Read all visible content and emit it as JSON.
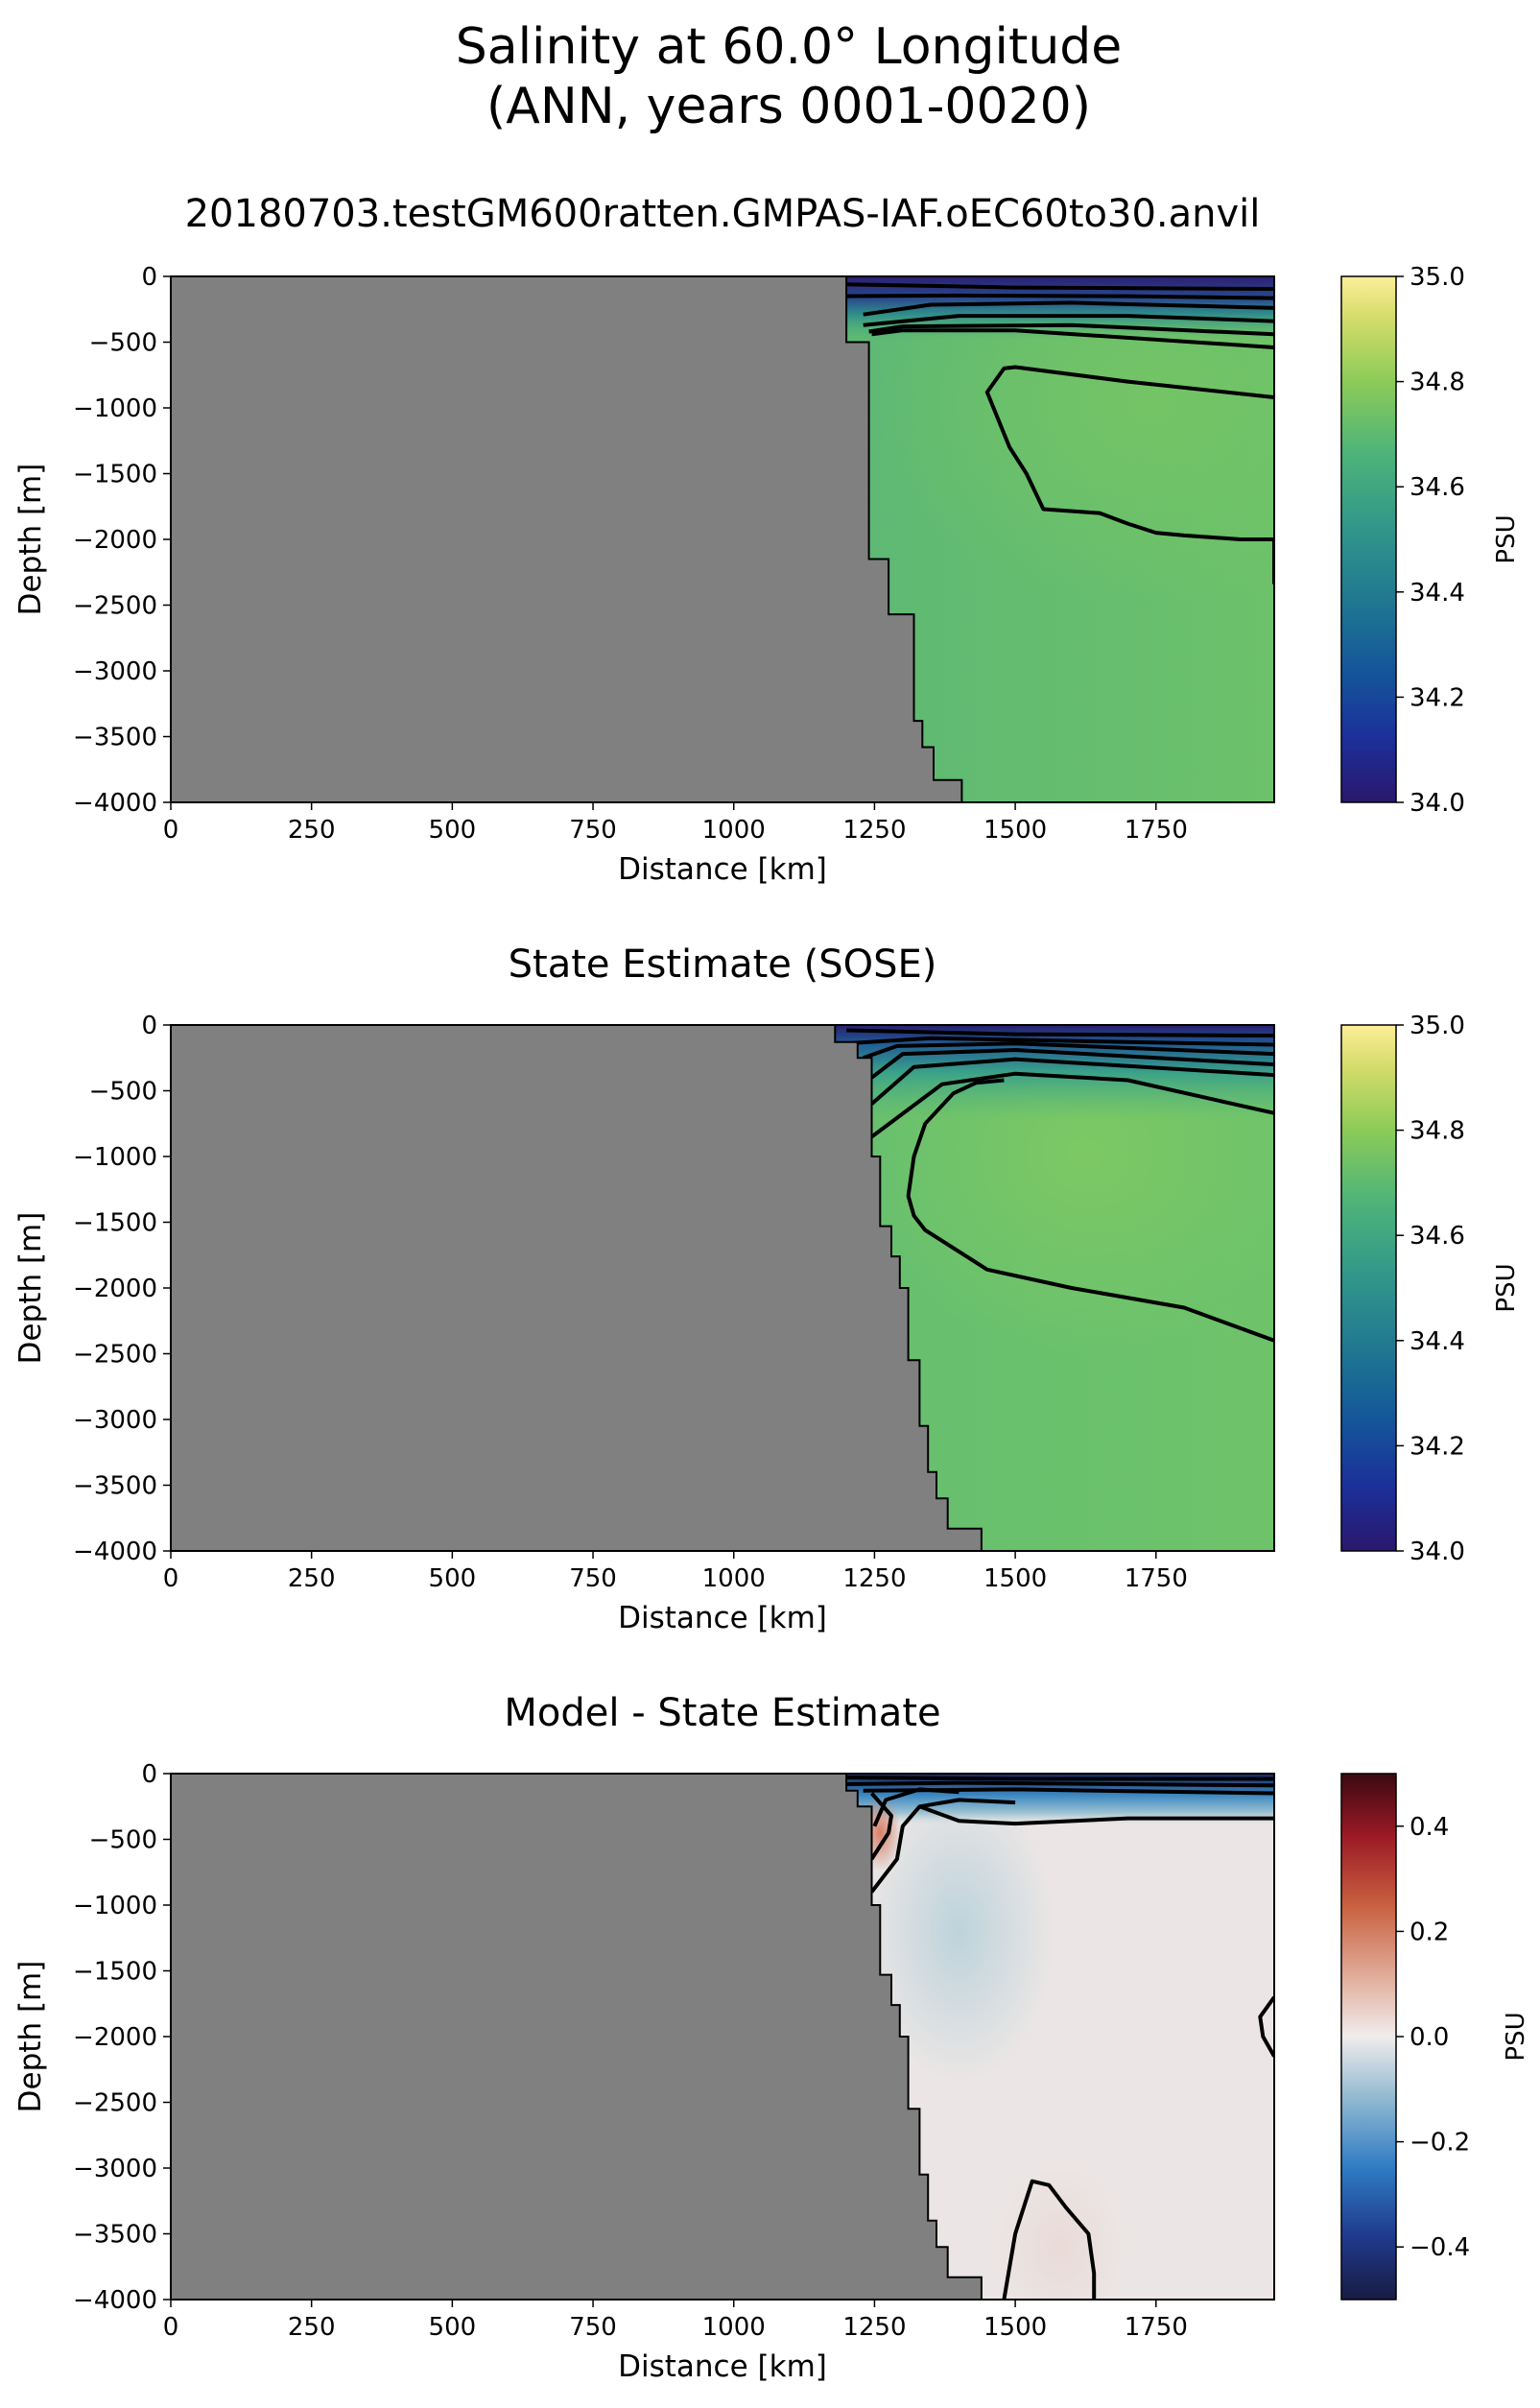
{
  "figure": {
    "title_line1": "Salinity at 60.0° Longitude",
    "title_line2": "(ANN, years 0001-0020)"
  },
  "chart_data": [
    {
      "type": "heatmap",
      "title": "20180703.testGM600ratten.GMPAS-IAF.oEC60to30.anvil",
      "xlabel": "Distance [km]",
      "ylabel": "Depth [m]",
      "xlim": [
        0,
        1960
      ],
      "ylim": [
        -4000,
        0
      ],
      "xticks": [
        0,
        250,
        500,
        750,
        1000,
        1250,
        1500,
        1750
      ],
      "yticks": [
        0,
        -500,
        -1000,
        -1500,
        -2000,
        -2500,
        -3000,
        -3500,
        -4000
      ],
      "colormap": "haline",
      "colorbar": {
        "label": "PSU",
        "range": [
          34.0,
          35.0
        ],
        "ticks": [
          "34.0",
          "34.2",
          "34.4",
          "34.6",
          "34.8",
          "35.0"
        ]
      },
      "land_color": "#808080",
      "bathymetry": [
        [
          1200,
          -500
        ],
        [
          1240,
          -500
        ],
        [
          1240,
          -2150
        ],
        [
          1275,
          -2150
        ],
        [
          1275,
          -2570
        ],
        [
          1320,
          -2570
        ],
        [
          1320,
          -3380
        ],
        [
          1335,
          -3380
        ],
        [
          1335,
          -3580
        ],
        [
          1355,
          -3580
        ],
        [
          1355,
          -3830
        ],
        [
          1405,
          -3830
        ],
        [
          1405,
          -4000
        ]
      ],
      "field": [
        {
          "x": 1200,
          "z": -50,
          "value": 34.08
        },
        {
          "x": 1800,
          "z": -50,
          "value": 34.12
        },
        {
          "x": 1300,
          "z": -1500,
          "value": 34.62
        },
        {
          "x": 1750,
          "z": -1500,
          "value": 34.71
        },
        {
          "x": 1600,
          "z": -3500,
          "value": 34.64
        }
      ],
      "contours": [
        [
          [
            1200,
            -60
          ],
          [
            1500,
            -85
          ],
          [
            1960,
            -95
          ]
        ],
        [
          [
            1200,
            -150
          ],
          [
            1400,
            -145
          ],
          [
            1700,
            -150
          ],
          [
            1960,
            -165
          ]
        ],
        [
          [
            1230,
            -290
          ],
          [
            1350,
            -215
          ],
          [
            1600,
            -200
          ],
          [
            1960,
            -240
          ]
        ],
        [
          [
            1230,
            -370
          ],
          [
            1400,
            -300
          ],
          [
            1700,
            -300
          ],
          [
            1960,
            -340
          ]
        ],
        [
          [
            1240,
            -420
          ],
          [
            1300,
            -380
          ],
          [
            1600,
            -370
          ],
          [
            1960,
            -440
          ]
        ],
        [
          [
            1245,
            -440
          ],
          [
            1300,
            -410
          ],
          [
            1500,
            -410
          ],
          [
            1960,
            -540
          ]
        ],
        [
          [
            1960,
            -920
          ],
          [
            1700,
            -800
          ],
          [
            1500,
            -690
          ],
          [
            1480,
            -700
          ],
          [
            1450,
            -880
          ],
          [
            1490,
            -1300
          ],
          [
            1520,
            -1500
          ],
          [
            1550,
            -1770
          ],
          [
            1650,
            -1800
          ],
          [
            1700,
            -1880
          ],
          [
            1750,
            -1950
          ],
          [
            1800,
            -1970
          ],
          [
            1900,
            -2000
          ],
          [
            1960,
            -2000
          ],
          [
            1960,
            -2340
          ]
        ]
      ]
    },
    {
      "type": "heatmap",
      "title": "State Estimate (SOSE)",
      "xlabel": "Distance [km]",
      "ylabel": "Depth [m]",
      "xlim": [
        0,
        1960
      ],
      "ylim": [
        -4000,
        0
      ],
      "xticks": [
        0,
        250,
        500,
        750,
        1000,
        1250,
        1500,
        1750
      ],
      "yticks": [
        0,
        -500,
        -1000,
        -1500,
        -2000,
        -2500,
        -3000,
        -3500,
        -4000
      ],
      "colormap": "haline",
      "colorbar": {
        "label": "PSU",
        "range": [
          34.0,
          35.0
        ],
        "ticks": [
          "34.0",
          "34.2",
          "34.4",
          "34.6",
          "34.8",
          "35.0"
        ]
      },
      "land_color": "#808080",
      "bathymetry": [
        [
          1180,
          -130
        ],
        [
          1220,
          -130
        ],
        [
          1220,
          -250
        ],
        [
          1245,
          -250
        ],
        [
          1245,
          -1000
        ],
        [
          1260,
          -1000
        ],
        [
          1260,
          -1530
        ],
        [
          1280,
          -1530
        ],
        [
          1280,
          -1760
        ],
        [
          1295,
          -1760
        ],
        [
          1295,
          -2000
        ],
        [
          1310,
          -2000
        ],
        [
          1310,
          -2550
        ],
        [
          1330,
          -2550
        ],
        [
          1330,
          -3050
        ],
        [
          1345,
          -3050
        ],
        [
          1345,
          -3400
        ],
        [
          1360,
          -3400
        ],
        [
          1360,
          -3600
        ],
        [
          1380,
          -3600
        ],
        [
          1380,
          -3830
        ],
        [
          1440,
          -3830
        ],
        [
          1440,
          -4000
        ]
      ],
      "field": [
        {
          "x": 1220,
          "z": -80,
          "value": 34.3
        },
        {
          "x": 1800,
          "z": -50,
          "value": 34.05
        },
        {
          "x": 1450,
          "z": -1200,
          "value": 34.72
        },
        {
          "x": 1750,
          "z": -1500,
          "value": 34.73
        },
        {
          "x": 1600,
          "z": -3500,
          "value": 34.66
        }
      ],
      "contours": [
        [
          [
            1200,
            -40
          ],
          [
            1500,
            -70
          ],
          [
            1960,
            -80
          ]
        ],
        [
          [
            1200,
            -140
          ],
          [
            1350,
            -100
          ],
          [
            1700,
            -130
          ],
          [
            1960,
            -150
          ]
        ],
        [
          [
            1230,
            -250
          ],
          [
            1290,
            -160
          ],
          [
            1500,
            -140
          ],
          [
            1960,
            -220
          ]
        ],
        [
          [
            1245,
            -400
          ],
          [
            1300,
            -220
          ],
          [
            1500,
            -190
          ],
          [
            1960,
            -300
          ]
        ],
        [
          [
            1245,
            -600
          ],
          [
            1320,
            -320
          ],
          [
            1500,
            -260
          ],
          [
            1960,
            -380
          ]
        ],
        [
          [
            1245,
            -850
          ],
          [
            1370,
            -450
          ],
          [
            1500,
            -370
          ],
          [
            1700,
            -420
          ],
          [
            1960,
            -670
          ]
        ],
        [
          [
            1960,
            -2400
          ],
          [
            1800,
            -2150
          ],
          [
            1600,
            -2000
          ],
          [
            1450,
            -1860
          ],
          [
            1340,
            -1560
          ],
          [
            1320,
            -1450
          ],
          [
            1310,
            -1300
          ],
          [
            1320,
            -1000
          ],
          [
            1340,
            -750
          ],
          [
            1390,
            -520
          ],
          [
            1430,
            -440
          ],
          [
            1480,
            -420
          ]
        ]
      ]
    },
    {
      "type": "heatmap",
      "title": "Model - State Estimate",
      "xlabel": "Distance [km]",
      "ylabel": "Depth [m]",
      "xlim": [
        0,
        1960
      ],
      "ylim": [
        -4000,
        0
      ],
      "xticks": [
        0,
        250,
        500,
        750,
        1000,
        1250,
        1500,
        1750
      ],
      "yticks": [
        0,
        -500,
        -1000,
        -1500,
        -2000,
        -2500,
        -3000,
        -3500,
        -4000
      ],
      "colormap": "balance",
      "colorbar": {
        "label": "PSU",
        "range": [
          -0.5,
          0.5
        ],
        "ticks": [
          "−0.4",
          "−0.2",
          "0.0",
          "0.2",
          "0.4"
        ]
      },
      "land_color": "#808080",
      "bathymetry": [
        [
          1200,
          -130
        ],
        [
          1220,
          -130
        ],
        [
          1220,
          -250
        ],
        [
          1245,
          -250
        ],
        [
          1245,
          -1000
        ],
        [
          1260,
          -1000
        ],
        [
          1260,
          -1530
        ],
        [
          1280,
          -1530
        ],
        [
          1280,
          -1760
        ],
        [
          1295,
          -1760
        ],
        [
          1295,
          -2000
        ],
        [
          1310,
          -2000
        ],
        [
          1310,
          -2550
        ],
        [
          1330,
          -2550
        ],
        [
          1330,
          -3050
        ],
        [
          1345,
          -3050
        ],
        [
          1345,
          -3400
        ],
        [
          1360,
          -3400
        ],
        [
          1360,
          -3600
        ],
        [
          1380,
          -3600
        ],
        [
          1380,
          -3830
        ],
        [
          1440,
          -3830
        ],
        [
          1440,
          -4000
        ]
      ],
      "field": [
        {
          "x": 1250,
          "z": -400,
          "value": 0.18
        },
        {
          "x": 1340,
          "z": -150,
          "value": -0.35
        },
        {
          "x": 1800,
          "z": -100,
          "value": -0.25
        },
        {
          "x": 1380,
          "z": -1100,
          "value": -0.08
        },
        {
          "x": 1800,
          "z": -2000,
          "value": 0.02
        },
        {
          "x": 1580,
          "z": -3600,
          "value": 0.03
        }
      ],
      "contours": [
        [
          [
            1200,
            -30
          ],
          [
            1500,
            -40
          ],
          [
            1960,
            -40
          ]
        ],
        [
          [
            1200,
            -80
          ],
          [
            1400,
            -70
          ],
          [
            1960,
            -90
          ]
        ],
        [
          [
            1230,
            -130
          ],
          [
            1500,
            -120
          ],
          [
            1960,
            -150
          ]
        ],
        [
          [
            1250,
            -400
          ],
          [
            1270,
            -200
          ],
          [
            1330,
            -120
          ],
          [
            1400,
            -140
          ]
        ],
        [
          [
            1245,
            -900
          ],
          [
            1290,
            -650
          ],
          [
            1300,
            -400
          ],
          [
            1330,
            -250
          ],
          [
            1400,
            -200
          ],
          [
            1500,
            -220
          ]
        ],
        [
          [
            1245,
            -650
          ],
          [
            1275,
            -450
          ],
          [
            1280,
            -320
          ],
          [
            1245,
            -150
          ]
        ],
        [
          [
            1330,
            -250
          ],
          [
            1400,
            -360
          ],
          [
            1500,
            -380
          ],
          [
            1700,
            -340
          ],
          [
            1960,
            -340
          ]
        ],
        [
          [
            1960,
            -1700
          ],
          [
            1935,
            -1850
          ],
          [
            1940,
            -2000
          ],
          [
            1960,
            -2150
          ]
        ],
        [
          [
            1480,
            -4000
          ],
          [
            1500,
            -3500
          ],
          [
            1530,
            -3100
          ],
          [
            1560,
            -3130
          ],
          [
            1590,
            -3300
          ],
          [
            1630,
            -3500
          ],
          [
            1640,
            -3800
          ],
          [
            1640,
            -4000
          ]
        ]
      ]
    }
  ]
}
